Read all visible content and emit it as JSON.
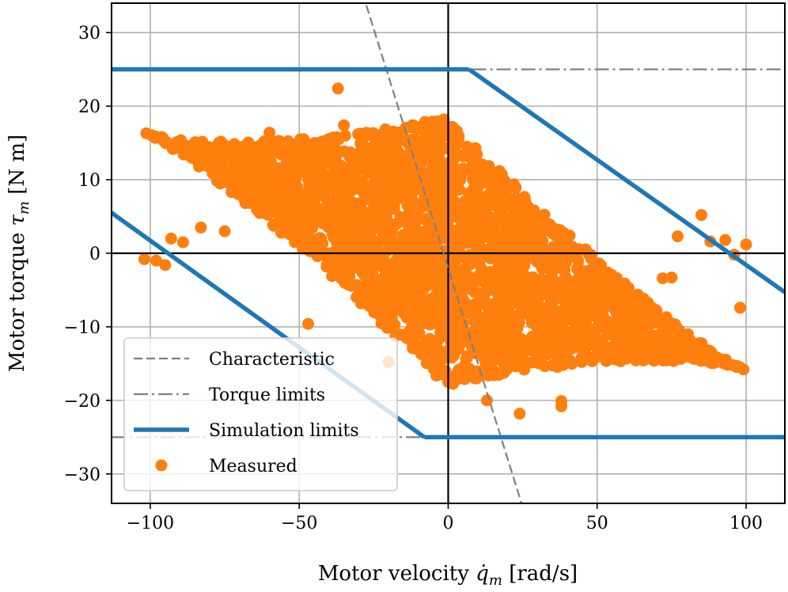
{
  "chart_data": {
    "type": "scatter",
    "xlabel": "Motor velocity q̇m [rad/s]",
    "ylabel": "Motor torque τm [N m]",
    "xlabel_parts": {
      "prefix": "Motor velocity ",
      "symbol": "q̇",
      "sub": "m",
      "suffix": " [rad/s]"
    },
    "ylabel_parts": {
      "prefix": "Motor torque ",
      "symbol": "τ",
      "sub": "m",
      "suffix": " [N m]"
    },
    "xlim": [
      -113,
      113
    ],
    "ylim": [
      -34,
      34
    ],
    "xticks": [
      -100,
      -50,
      0,
      50,
      100
    ],
    "xtick_labels": [
      "−100",
      "−50",
      "0",
      "50",
      "100"
    ],
    "yticks": [
      -30,
      -20,
      -10,
      0,
      10,
      20,
      30
    ],
    "ytick_labels": [
      "−30",
      "−20",
      "−10",
      "0",
      "10",
      "20",
      "30"
    ],
    "grid": true,
    "legend_position": "lower-left",
    "series": [
      {
        "name": "Characteristic",
        "kind": "line",
        "style": "dashed",
        "color": "#808080",
        "x": [
          -30,
          25
        ],
        "y": [
          37,
          -34.5
        ]
      },
      {
        "name": "Torque limits",
        "kind": "line",
        "style": "dashdot",
        "color": "#808080",
        "segments": [
          {
            "x": [
              -113,
              -8
            ],
            "y": [
              -25,
              -25
            ]
          },
          {
            "x": [
              8,
              113
            ],
            "y": [
              25,
              25
            ]
          }
        ]
      },
      {
        "name": "Simulation limits",
        "kind": "line",
        "style": "solid",
        "color": "#1f77b4",
        "segments": [
          {
            "x": [
              -113,
              7
            ],
            "y": [
              25,
              25
            ]
          },
          {
            "x": [
              7,
              113
            ],
            "y": [
              25,
              -5.3
            ]
          },
          {
            "x": [
              -113,
              -8
            ],
            "y": [
              5.5,
              -25
            ]
          },
          {
            "x": [
              -8,
              113
            ],
            "y": [
              -25,
              -25
            ]
          }
        ]
      },
      {
        "name": "Measured",
        "kind": "scatter",
        "color": "#ff7f0e",
        "cluster": {
          "x_range": [
            -102,
            100
          ],
          "y_range": [
            -18,
            18.5
          ],
          "tilt": -0.16,
          "count": 2600
        },
        "outliers": {
          "x": [
            -37,
            -35,
            -60,
            13,
            24,
            38,
            38,
            62,
            98,
            -47,
            -20,
            0,
            100,
            -95,
            -102,
            -98,
            -93,
            -89,
            -83,
            -75,
            96,
            93,
            88,
            85,
            75,
            72,
            77
          ],
          "y": [
            22.4,
            17.4,
            16.4,
            -20,
            -21.8,
            -20.1,
            -20.8,
            -14.2,
            -7.4,
            -9.6,
            -14.8,
            -17.5,
            1.2,
            -1.6,
            -0.8,
            -1.0,
            2.0,
            1.5,
            3.5,
            3.0,
            -0.2,
            1.8,
            1.6,
            5.2,
            -3.3,
            -3.4,
            2.3
          ]
        }
      }
    ]
  }
}
